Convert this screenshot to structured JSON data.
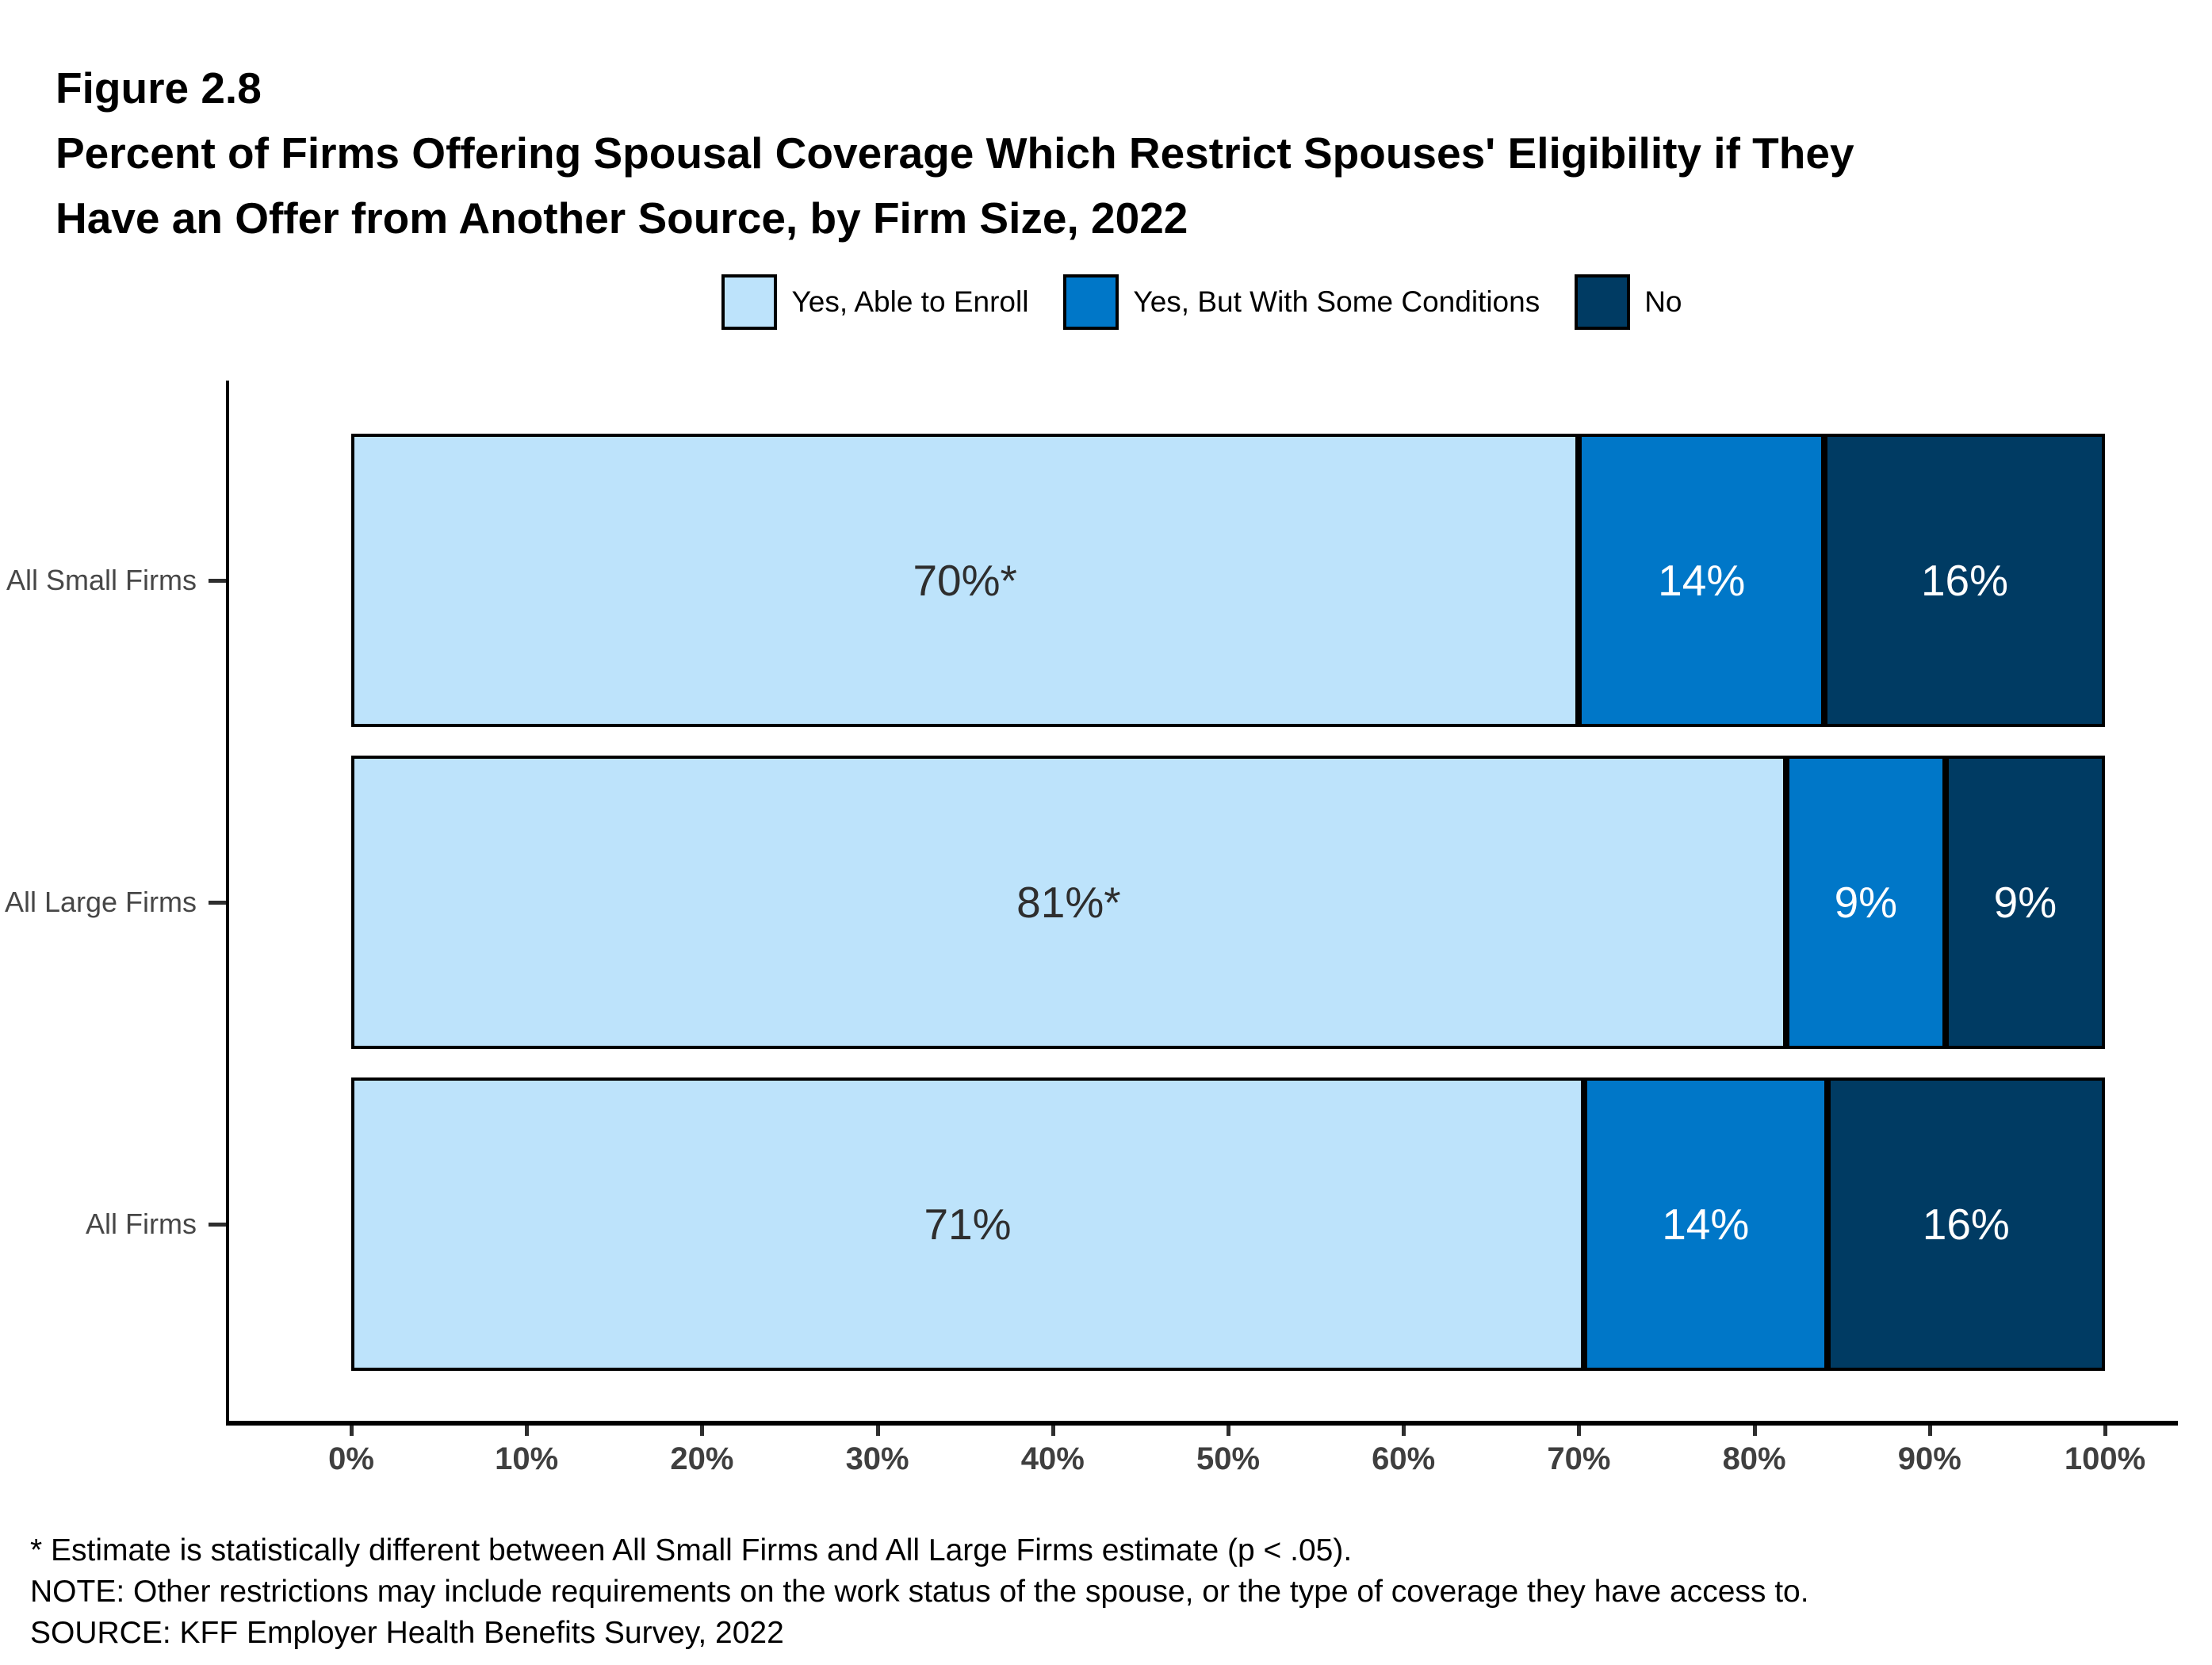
{
  "header": {
    "figure_label": "Figure 2.8",
    "title_lines": [
      "Percent of Firms Offering Spousal Coverage Which Restrict Spouses' Eligibility if They",
      "Have an Offer from Another Source, by Firm Size, 2022"
    ]
  },
  "chart_data": {
    "type": "bar",
    "orientation": "horizontal",
    "stacked": true,
    "title": "Percent of Firms Offering Spousal Coverage Which Restrict Spouses' Eligibility if They Have an Offer from Another Source, by Firm Size, 2022",
    "categories": [
      "All Small Firms",
      "All Large Firms",
      "All Firms"
    ],
    "series": [
      {
        "name": "Yes, Able to Enroll",
        "color": "#BDE3FB",
        "label_color": "#2E2E2E",
        "values": [
          70,
          81,
          71
        ],
        "display": [
          "70%*",
          "81%*",
          "71%"
        ]
      },
      {
        "name": "Yes, But With Some Conditions",
        "color": "#0077C8",
        "label_color": "#FFFFFF",
        "values": [
          14,
          9,
          14
        ],
        "display": [
          "14%",
          "9%",
          "14%"
        ]
      },
      {
        "name": "No",
        "color": "#003B63",
        "label_color": "#FFFFFF",
        "values": [
          16,
          9,
          16
        ],
        "display": [
          "16%",
          "9%",
          "16%"
        ]
      }
    ],
    "x_ticks": [
      "0%",
      "10%",
      "20%",
      "30%",
      "40%",
      "50%",
      "60%",
      "70%",
      "80%",
      "90%",
      "100%"
    ],
    "xlim": [
      0,
      100
    ],
    "legend_position": "top",
    "grid": false
  },
  "footnotes": [
    "* Estimate is statistically different between All Small Firms and All Large Firms estimate (p < .05).",
    "NOTE: Other restrictions may include requirements on the work status of the spouse, or the type of coverage they have access to.",
    "SOURCE: KFF Employer Health Benefits Survey, 2022"
  ]
}
